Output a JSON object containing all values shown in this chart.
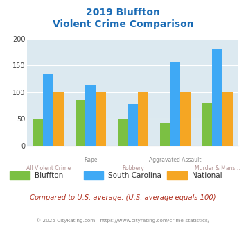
{
  "title_line1": "2019 Bluffton",
  "title_line2": "Violent Crime Comparison",
  "categories": [
    "All Violent Crime",
    "Rape",
    "Robbery",
    "Aggravated Assault",
    "Murder & Mans..."
  ],
  "series": {
    "Bluffton": [
      50,
      85,
      50,
      42,
      80
    ],
    "South Carolina": [
      135,
      113,
      78,
      157,
      180
    ],
    "National": [
      100,
      100,
      100,
      100,
      100
    ]
  },
  "colors": {
    "Bluffton": "#7bc043",
    "South Carolina": "#3fa9f5",
    "National": "#f5a623"
  },
  "ylim": [
    0,
    200
  ],
  "yticks": [
    0,
    50,
    100,
    150,
    200
  ],
  "background_color": "#dce9f0",
  "title_color": "#1a6bb5",
  "subtitle_text": "Compared to U.S. average. (U.S. average equals 100)",
  "subtitle_color": "#b03020",
  "footer_text": "© 2025 CityRating.com - https://www.cityrating.com/crime-statistics/",
  "footer_color": "#888888",
  "row1_labels": [
    "",
    "Rape",
    "",
    "Aggravated Assault",
    ""
  ],
  "row2_labels": [
    "All Violent Crime",
    "",
    "Robbery",
    "",
    "Murder & Mans..."
  ],
  "row1_color": "#888888",
  "row2_color": "#b09090"
}
